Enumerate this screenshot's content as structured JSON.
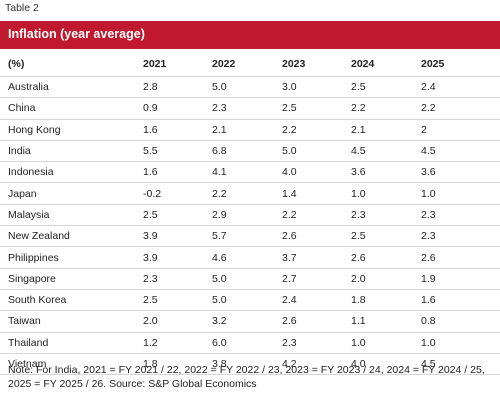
{
  "caption": "Table 2",
  "banner_title": "Inflation (year average)",
  "table": {
    "headers": [
      "(%)",
      "2021",
      "2022",
      "2023",
      "2024",
      "2025"
    ],
    "rows": [
      [
        "Australia",
        "2.8",
        "5.0",
        "3.0",
        "2.5",
        "2.4"
      ],
      [
        "China",
        "0.9",
        "2.3",
        "2.5",
        "2.2",
        "2.2"
      ],
      [
        "Hong Kong",
        "1.6",
        "2.1",
        "2.2",
        "2.1",
        "2"
      ],
      [
        "India",
        "5.5",
        "6.8",
        "5.0",
        "4.5",
        "4.5"
      ],
      [
        "Indonesia",
        "1.6",
        "4.1",
        "4.0",
        "3.6",
        "3.6"
      ],
      [
        "Japan",
        "-0.2",
        "2.2",
        "1.4",
        "1.0",
        "1.0"
      ],
      [
        "Malaysia",
        "2.5",
        "2.9",
        "2.2",
        "2.3",
        "2.3"
      ],
      [
        "New Zealand",
        "3.9",
        "5.7",
        "2.6",
        "2.5",
        "2.3"
      ],
      [
        "Philippines",
        "3.9",
        "4.6",
        "3.7",
        "2.6",
        "2.6"
      ],
      [
        "Singapore",
        "2.3",
        "5.0",
        "2.7",
        "2.0",
        "1.9"
      ],
      [
        "South Korea",
        "2.5",
        "5.0",
        "2.4",
        "1.8",
        "1.6"
      ],
      [
        "Taiwan",
        "2.0",
        "3.2",
        "2.6",
        "1.1",
        "0.8"
      ],
      [
        "Thailand",
        "1.2",
        "6.0",
        "2.3",
        "1.0",
        "1.0"
      ],
      [
        "Vietnam",
        "1.8",
        "3.8",
        "4.2",
        "4.0",
        "4.5"
      ]
    ]
  },
  "note": "Note: For India, 2021 = FY 2021 / 22, 2022 = FY 2022 / 23, 2023 = FY 2023 / 24, 2024 = FY 2024 / 25, 2025 = FY 2025 / 26. Source: S&P Global Economics",
  "colors": {
    "banner_background": "#c0192f",
    "banner_text": "#ffffff",
    "row_divider": "#d4d4d4"
  }
}
